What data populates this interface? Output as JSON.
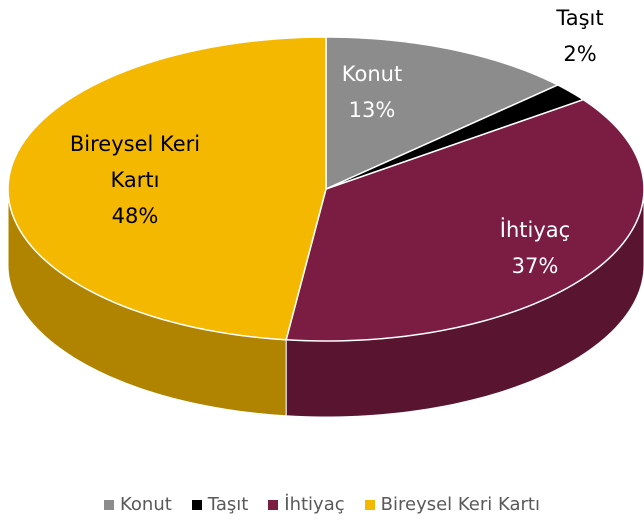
{
  "chart_data": {
    "type": "pie3d",
    "categories": [
      "Konut",
      "Taşıt",
      "İhtiyaç",
      "Bireysel Keri Kartı"
    ],
    "values": [
      13,
      2,
      37,
      48
    ],
    "value_labels": [
      "13%",
      "2%",
      "37%",
      "48%"
    ],
    "colors": [
      "#8c8c8c",
      "#000000",
      "#7b1c42",
      "#f5b800"
    ],
    "legend": "bottom"
  }
}
